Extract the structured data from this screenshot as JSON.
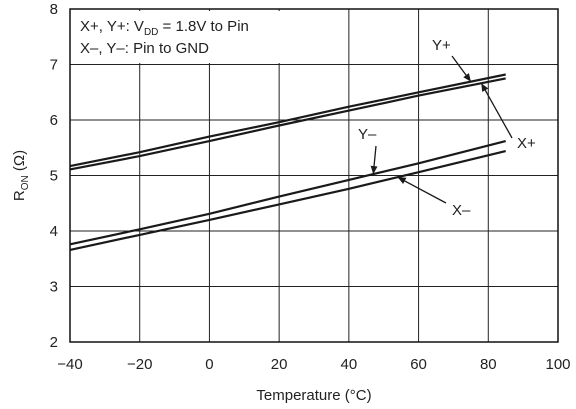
{
  "chart_data": {
    "type": "line",
    "xlabel": "Temperature (°C)",
    "ylabel": {
      "main": "R",
      "sub": "ON",
      "unit": " (Ω)"
    },
    "xlim": [
      -40,
      100
    ],
    "ylim": [
      2,
      8
    ],
    "x_ticks": [
      -40,
      -20,
      0,
      20,
      40,
      60,
      80,
      100
    ],
    "y_ticks": [
      2,
      3,
      4,
      5,
      6,
      7,
      8
    ],
    "x_tick_labels": [
      "−40",
      "−20",
      "0",
      "20",
      "40",
      "60",
      "80",
      "100"
    ],
    "y_tick_labels": [
      "2",
      "3",
      "4",
      "5",
      "6",
      "7",
      "8"
    ],
    "grid": true,
    "annotations": {
      "line1": {
        "pre": "X+, Y+: V",
        "sub": "DD",
        "post": " = 1.8V to Pin"
      },
      "line2": "X–, Y–: Pin to GND"
    },
    "series": [
      {
        "name": "Y+",
        "x": [
          -40,
          -20,
          0,
          20,
          40,
          60,
          85
        ],
        "y": [
          5.17,
          5.42,
          5.7,
          5.96,
          6.24,
          6.5,
          6.82
        ]
      },
      {
        "name": "X+",
        "x": [
          -40,
          -20,
          0,
          20,
          40,
          60,
          85
        ],
        "y": [
          5.11,
          5.35,
          5.62,
          5.9,
          6.17,
          6.44,
          6.75
        ]
      },
      {
        "name": "Y–",
        "x": [
          -40,
          -20,
          0,
          20,
          40,
          60,
          85
        ],
        "y": [
          3.76,
          4.03,
          4.31,
          4.62,
          4.92,
          5.22,
          5.62
        ]
      },
      {
        "name": "X–",
        "x": [
          -40,
          -20,
          0,
          20,
          40,
          60,
          85
        ],
        "y": [
          3.66,
          3.93,
          4.2,
          4.48,
          4.76,
          5.06,
          5.44
        ]
      }
    ],
    "series_labels": [
      "Y+",
      "X+",
      "Y–",
      "X–"
    ],
    "colors": {
      "line": "#1a1a1a",
      "grid": "#222222",
      "frame": "#111111"
    }
  }
}
